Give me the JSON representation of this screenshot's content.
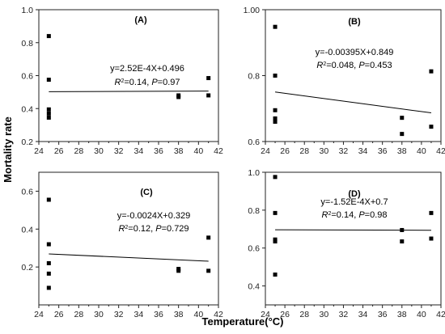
{
  "ylabel": "Mortality rate",
  "xlabel": "Temperature(°C)",
  "x_ticks": [
    "24",
    "26",
    "28",
    "30",
    "32",
    "34",
    "36",
    "38",
    "40",
    "42"
  ],
  "chart_data": [
    {
      "type": "scatter",
      "panel": "(A)",
      "xlim": [
        24,
        42
      ],
      "ylim": [
        0.2,
        1.0
      ],
      "y_ticks": [
        "0.2",
        "0.4",
        "0.6",
        "0.8",
        "1.0"
      ],
      "points": [
        {
          "x": 25,
          "y": 0.84
        },
        {
          "x": 25,
          "y": 0.575
        },
        {
          "x": 25,
          "y": 0.395
        },
        {
          "x": 25,
          "y": 0.37
        },
        {
          "x": 25,
          "y": 0.345
        },
        {
          "x": 38,
          "y": 0.48
        },
        {
          "x": 38,
          "y": 0.47
        },
        {
          "x": 41,
          "y": 0.585
        },
        {
          "x": 41,
          "y": 0.48
        }
      ],
      "fit": {
        "slope": 0.000252,
        "intercept": 0.496
      },
      "equation": {
        "line1": "y=2.52E-4X+0.496",
        "r2": "=0.14, ",
        "p": "=0.97"
      },
      "grid": false
    },
    {
      "type": "scatter",
      "panel": "(B)",
      "xlim": [
        24,
        42
      ],
      "ylim": [
        0.6,
        1.0
      ],
      "y_ticks": [
        "0.6",
        "0.8",
        "1.00"
      ],
      "points": [
        {
          "x": 25,
          "y": 0.948
        },
        {
          "x": 25,
          "y": 0.8
        },
        {
          "x": 25,
          "y": 0.695
        },
        {
          "x": 25,
          "y": 0.67
        },
        {
          "x": 25,
          "y": 0.66
        },
        {
          "x": 38,
          "y": 0.672
        },
        {
          "x": 38,
          "y": 0.623
        },
        {
          "x": 41,
          "y": 0.813
        },
        {
          "x": 41,
          "y": 0.645
        }
      ],
      "fit": {
        "slope": -0.00395,
        "intercept": 0.849
      },
      "equation": {
        "line1": "y=-0.00395X+0.849",
        "r2": "=0.048, ",
        "p": "=0.453"
      },
      "grid": false
    },
    {
      "type": "scatter",
      "panel": "(C)",
      "xlim": [
        24,
        42
      ],
      "ylim": [
        0.0,
        0.7
      ],
      "y_ticks": [
        "0.2",
        "0.4",
        "0.6"
      ],
      "points": [
        {
          "x": 25,
          "y": 0.555
        },
        {
          "x": 25,
          "y": 0.32
        },
        {
          "x": 25,
          "y": 0.22
        },
        {
          "x": 25,
          "y": 0.165
        },
        {
          "x": 25,
          "y": 0.09
        },
        {
          "x": 38,
          "y": 0.19
        },
        {
          "x": 38,
          "y": 0.18
        },
        {
          "x": 41,
          "y": 0.355
        },
        {
          "x": 41,
          "y": 0.18
        }
      ],
      "fit": {
        "slope": -0.0024,
        "intercept": 0.329
      },
      "equation": {
        "line1": "y=-0.0024X+0.329",
        "r2": "=0.12, ",
        "p": "=0.729"
      },
      "grid": false
    },
    {
      "type": "scatter",
      "panel": "(D)",
      "xlim": [
        24,
        42
      ],
      "ylim": [
        0.3,
        1.0
      ],
      "y_ticks": [
        "0.4",
        "0.6",
        "0.8",
        "1.0"
      ],
      "points": [
        {
          "x": 25,
          "y": 0.975
        },
        {
          "x": 25,
          "y": 0.785
        },
        {
          "x": 25,
          "y": 0.645
        },
        {
          "x": 25,
          "y": 0.635
        },
        {
          "x": 25,
          "y": 0.46
        },
        {
          "x": 38,
          "y": 0.695
        },
        {
          "x": 38,
          "y": 0.635
        },
        {
          "x": 41,
          "y": 0.785
        },
        {
          "x": 41,
          "y": 0.65
        }
      ],
      "fit": {
        "slope": -0.000152,
        "intercept": 0.7
      },
      "equation": {
        "line1": "y=-1.52E-4X+0.7",
        "r2": "=0.14, ",
        "p": "=0.98"
      },
      "grid": false
    }
  ]
}
